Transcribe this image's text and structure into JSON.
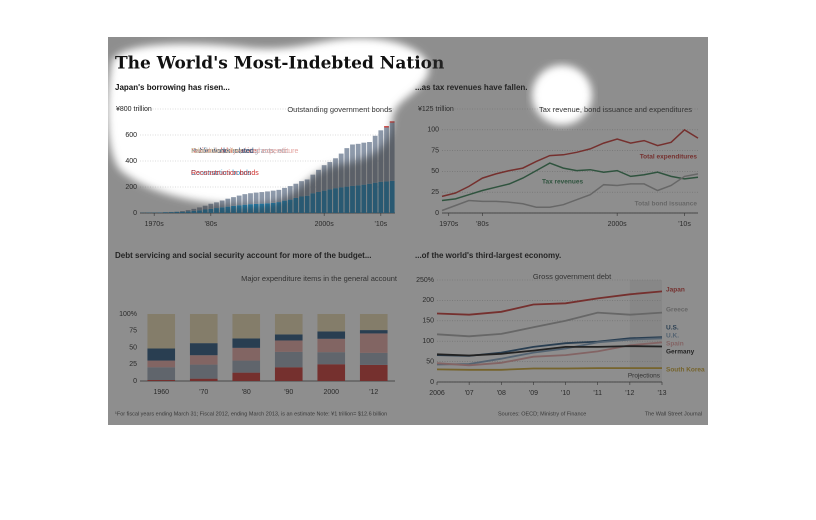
{
  "title": "The World's Most-Indebted Nation",
  "footnote": "¹For fiscal years ending March 31; Fiscal 2012, ending March 2013, is an estimate   Note: ¥1 trillion= $12.6 billion",
  "source": "Sources: OECD; Ministry of Finance",
  "credit": "The Wall Street Journal",
  "chart_data": [
    {
      "type": "bar",
      "stacked": true,
      "title": "Japan's borrowing has risen...",
      "subtitle": "Outstanding government bonds",
      "x": [
        1968,
        1969,
        1970,
        1971,
        1972,
        1973,
        1974,
        1975,
        1976,
        1977,
        1978,
        1979,
        1980,
        1981,
        1982,
        1983,
        1984,
        1985,
        1986,
        1987,
        1988,
        1989,
        1990,
        1991,
        1992,
        1993,
        1994,
        1995,
        1996,
        1997,
        1998,
        1999,
        2000,
        2001,
        2002,
        2003,
        2004,
        2005,
        2006,
        2007,
        2008,
        2009,
        2010,
        2011,
        2012
      ],
      "xlim": [
        1967.5,
        2012.5
      ],
      "xticks": [
        {
          "value": 1970,
          "label": "1970s"
        },
        {
          "value": 1980,
          "label": "'80s"
        },
        {
          "value": 2000,
          "label": "2000s"
        },
        {
          "value": 2010,
          "label": "'10s"
        }
      ],
      "ylim": [
        0,
        800
      ],
      "yticks": [
        0,
        200,
        400,
        600,
        {
          "value": 800,
          "label": "¥800 trillion"
        }
      ],
      "grid": true,
      "series": [
        {
          "name": "Construction bonds",
          "color": "#1f8ac0",
          "values": [
            2,
            3,
            3,
            4,
            6,
            7,
            9,
            10,
            13,
            17,
            21,
            27,
            32,
            38,
            44,
            49,
            55,
            60,
            64,
            68,
            70,
            72,
            75,
            78,
            84,
            95,
            103,
            116,
            127,
            133,
            152,
            162,
            172,
            182,
            191,
            198,
            203,
            208,
            213,
            218,
            225,
            233,
            240,
            243,
            247
          ]
        },
        {
          "color": "#8e9aab",
          "values": [
            0,
            0,
            0,
            0,
            0,
            1,
            1,
            5,
            9,
            15,
            22,
            29,
            39,
            44,
            52,
            61,
            67,
            74,
            81,
            84,
            87,
            89,
            91,
            94,
            94,
            98,
            104,
            109,
            118,
            125,
            143,
            170,
            196,
            210,
            230,
            259,
            296,
            319,
            319,
            323,
            321,
            361,
            396,
            415,
            448
          ]
        },
        {
          "name": "Reconstruction bonds",
          "color": "#d0312d",
          "values": [
            0,
            0,
            0,
            0,
            0,
            0,
            0,
            0,
            0,
            0,
            0,
            0,
            0,
            0,
            0,
            0,
            0,
            0,
            0,
            0,
            0,
            0,
            0,
            0,
            0,
            0,
            0,
            0,
            0,
            0,
            0,
            0,
            0,
            0,
            0,
            0,
            0,
            0,
            0,
            0,
            0,
            0,
            0,
            10,
            10
          ]
        }
      ]
    },
    {
      "type": "line",
      "title": "...as tax revenues have fallen.",
      "subtitle": "Tax revenue, bond issuance and expenditures",
      "x": [
        1974,
        1976,
        1978,
        1980,
        1982,
        1984,
        1986,
        1988,
        1990,
        1992,
        1994,
        1996,
        1998,
        2000,
        2002,
        2004,
        2006,
        2008,
        2010,
        2012
      ],
      "xlim": [
        1974,
        2012
      ],
      "xticks": [
        {
          "value": 1975,
          "label": "1970s"
        },
        {
          "value": 1980,
          "label": "'80s"
        },
        {
          "value": 2000,
          "label": "2000s"
        },
        {
          "value": 2010,
          "label": "'10s"
        }
      ],
      "ylim": [
        0,
        125
      ],
      "yticks": [
        0,
        25,
        50,
        75,
        100,
        {
          "value": 125,
          "label": "¥125 trillion"
        }
      ],
      "grid": true,
      "series": [
        {
          "name": "Total expenditures",
          "color": "#c8302c",
          "values": [
            20,
            24,
            32,
            42,
            47,
            51,
            54,
            62,
            69,
            70,
            73,
            77,
            84,
            89,
            84,
            87,
            81,
            85,
            100,
            90
          ]
        },
        {
          "name": "Tax revenues",
          "color": "#2e7d4f",
          "values": [
            15,
            17,
            22,
            27,
            31,
            35,
            42,
            51,
            60,
            54,
            51,
            52,
            49,
            51,
            44,
            46,
            49,
            44,
            41,
            43
          ]
        },
        {
          "name": "Total bond issuance",
          "color": "#a9a9a9",
          "values": [
            3,
            9,
            15,
            14,
            14,
            13,
            11,
            7,
            7,
            10,
            16,
            22,
            34,
            33,
            35,
            35,
            27,
            33,
            44,
            47
          ]
        }
      ]
    },
    {
      "type": "bar",
      "stacked": true,
      "title": "Debt servicing and social security account for more of the budget...",
      "subtitle": "Major expenditure items in the general account",
      "categories": [
        "1960",
        "'70",
        "'80",
        "'90",
        "2000",
        "'12"
      ],
      "ylim": [
        0,
        100
      ],
      "yticks": [
        0,
        25,
        50,
        75,
        {
          "value": 100,
          "label": "100%"
        }
      ],
      "grid": false,
      "series": [
        {
          "name": "National debt service",
          "color": "#c8302c",
          "values": [
            1.5,
            3.5,
            12.5,
            20.5,
            25,
            24
          ]
        },
        {
          "name": "Local allocation, tax grants, etc.",
          "color": "#9aa5b3",
          "values": [
            19,
            21,
            18,
            23,
            18,
            18
          ]
        },
        {
          "name": "Social-security related expenditure",
          "color": "#e4a4a0",
          "values": [
            10,
            14,
            19,
            17,
            20,
            29
          ]
        },
        {
          "name": "Public works related",
          "color": "#1f4e79",
          "values": [
            18,
            18,
            14,
            9,
            11,
            5
          ]
        },
        {
          "name": "Education, other",
          "color": "#e8d9b0",
          "values": [
            51.5,
            43.5,
            36.5,
            30.5,
            26,
            24
          ]
        }
      ]
    },
    {
      "type": "line",
      "title": "...of the world's third-largest economy.",
      "subtitle": "Gross government debt",
      "annotation": "Projections",
      "projection_from": 2012,
      "x": [
        2006,
        2007,
        2008,
        2009,
        2010,
        2011,
        2012,
        2013
      ],
      "xlim": [
        2006,
        2013
      ],
      "xticks": [
        2006,
        {
          "value": 2007,
          "label": "'07"
        },
        {
          "value": 2008,
          "label": "'08"
        },
        {
          "value": 2009,
          "label": "'09"
        },
        {
          "value": 2010,
          "label": "'10"
        },
        {
          "value": 2011,
          "label": "'11"
        },
        {
          "value": 2012,
          "label": "'12"
        },
        {
          "value": 2013,
          "label": "'13"
        }
      ],
      "ylim": [
        0,
        250
      ],
      "yticks": [
        0,
        50,
        100,
        150,
        200,
        {
          "value": 250,
          "label": "250%"
        }
      ],
      "grid": true,
      "series": [
        {
          "name": "Japan",
          "color": "#c8302c",
          "values": [
            168,
            165,
            172,
            190,
            193,
            205,
            215,
            222
          ]
        },
        {
          "name": "Greece",
          "color": "#a8a8a8",
          "values": [
            117,
            112,
            118,
            134,
            150,
            170,
            165,
            170
          ]
        },
        {
          "name": "U.S.",
          "color": "#1f4e79",
          "values": [
            66,
            64,
            72,
            86,
            95,
            99,
            107,
            110
          ]
        },
        {
          "name": "U.K.",
          "color": "#7f9fbf",
          "values": [
            43,
            44,
            57,
            72,
            82,
            97,
            104,
            107
          ]
        },
        {
          "name": "Spain",
          "color": "#e7a3a3",
          "values": [
            46,
            41,
            47,
            62,
            66,
            75,
            90,
            97
          ]
        },
        {
          "name": "Germany",
          "color": "#111111",
          "values": [
            68,
            65,
            69,
            77,
            86,
            86,
            88,
            87
          ]
        },
        {
          "name": "South Korea",
          "color": "#c9a227",
          "values": [
            31,
            30,
            30,
            33,
            33,
            34,
            34,
            34
          ]
        }
      ]
    }
  ]
}
